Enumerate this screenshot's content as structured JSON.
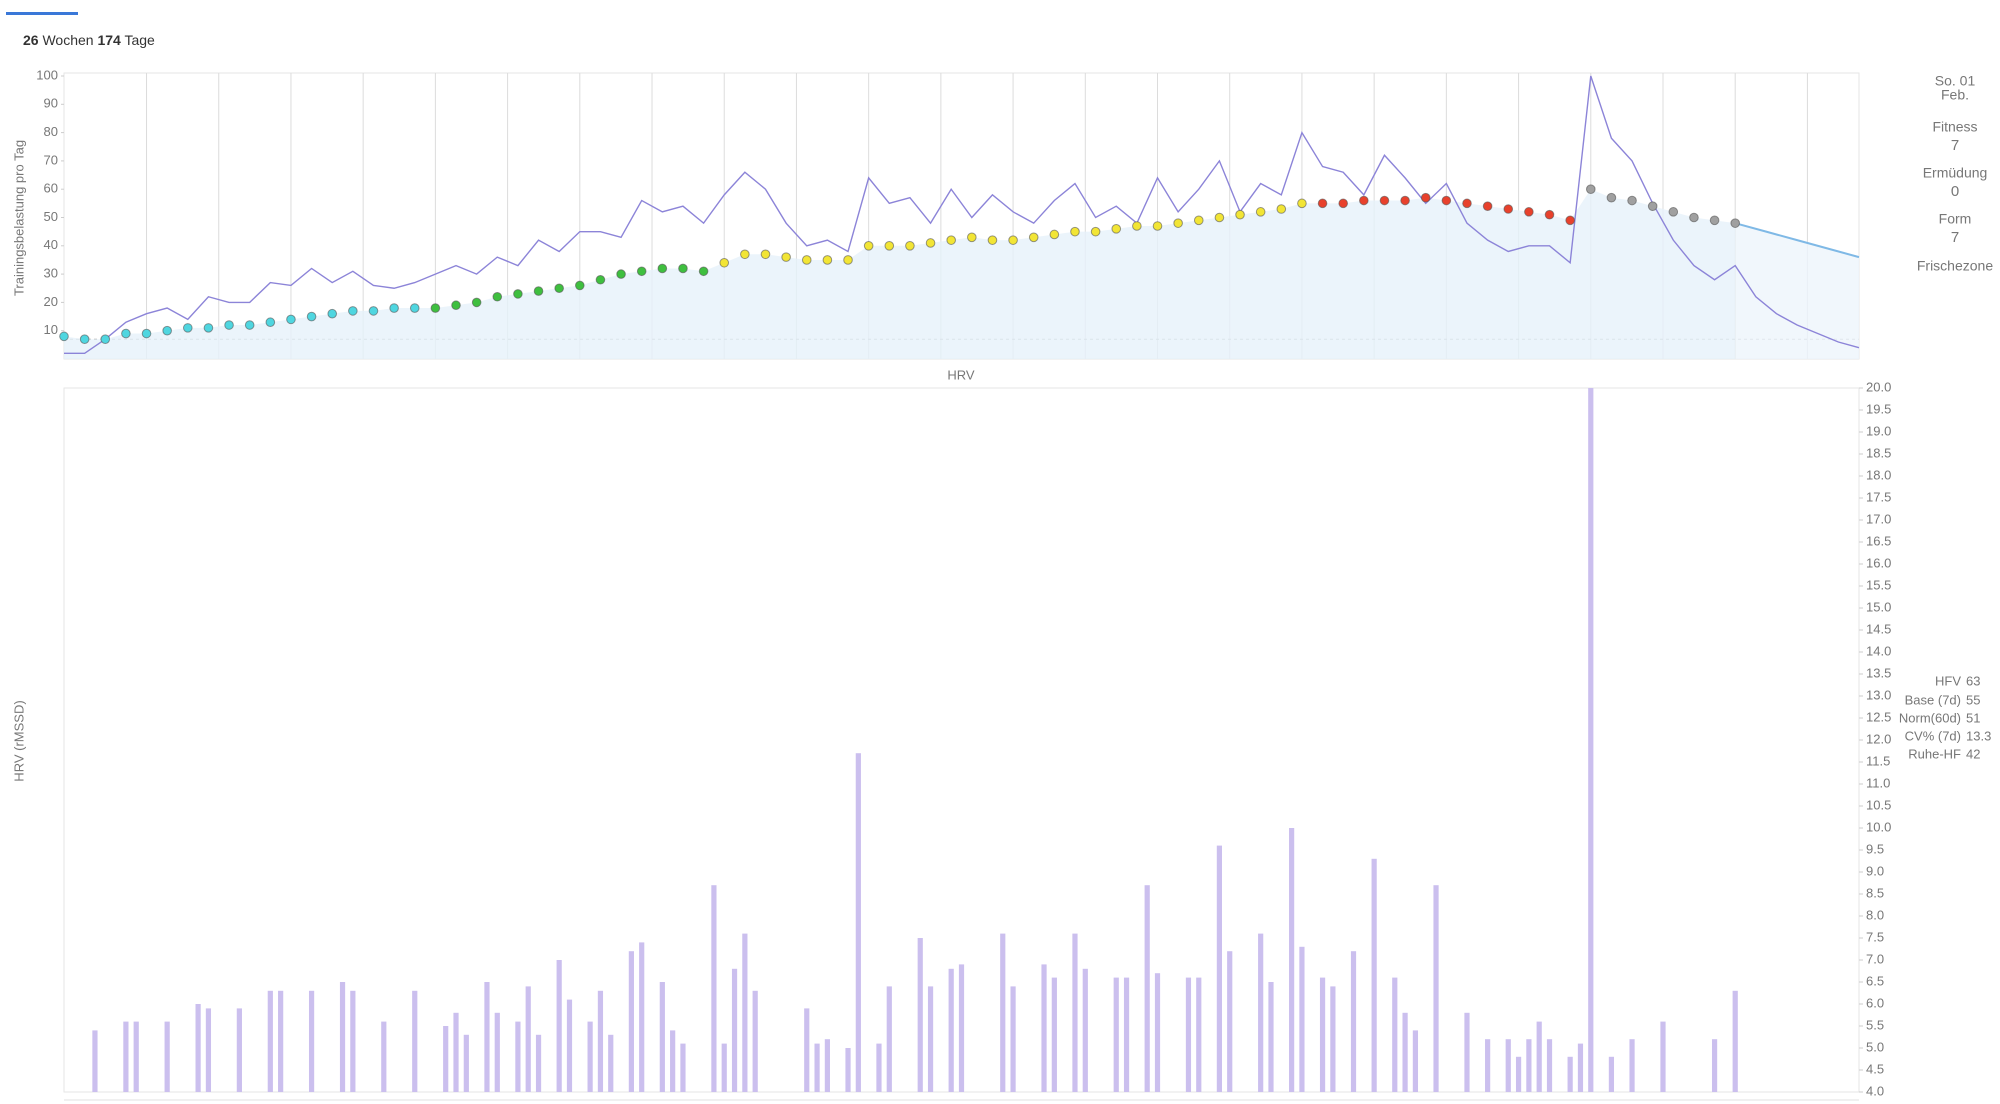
{
  "header": {
    "weeks": 26,
    "weeks_unit": "Wochen",
    "days": 174,
    "days_unit": "Tage"
  },
  "summary": {
    "date_day": "So. 01",
    "date_month": "Feb.",
    "items": [
      {
        "label": "Fitness",
        "value": 7,
        "color": "#3aa0d8"
      },
      {
        "label": "Ermüdung",
        "value": 0,
        "color": "#4b2fd6"
      },
      {
        "label": "Form",
        "value": 7,
        "color": "#3aa0d8"
      }
    ],
    "zone": "Frischezone"
  },
  "chart_data": [
    {
      "type": "line",
      "ylabel": "Trainingsbelastung pro Tag",
      "xlim": [
        0,
        174
      ],
      "ylim": [
        0,
        100
      ],
      "yticks": [
        10,
        20,
        30,
        40,
        50,
        60,
        70,
        80,
        90,
        100
      ],
      "x_gridlines": [
        8,
        15,
        22,
        29,
        36,
        43,
        50,
        57,
        64,
        71,
        78,
        85,
        92,
        99,
        106,
        113,
        120,
        127,
        134,
        141,
        148,
        155,
        162,
        169
      ],
      "reference_line": 7,
      "series": [
        {
          "kind": "line",
          "color": "#8c84d8",
          "x": [
            0,
            2,
            4,
            6,
            8,
            10,
            12,
            14,
            16,
            18,
            20,
            22,
            24,
            26,
            28,
            30,
            32,
            34,
            36,
            38,
            40,
            42,
            44,
            46,
            48,
            50,
            52,
            54,
            56,
            58,
            60,
            62,
            64,
            66,
            68,
            70,
            72,
            74,
            76,
            78,
            80,
            82,
            84,
            86,
            88,
            90,
            92,
            94,
            96,
            98,
            100,
            102,
            104,
            106,
            108,
            110,
            112,
            114,
            116,
            118,
            120,
            122,
            124,
            126,
            128,
            130,
            132,
            134,
            136,
            138,
            140,
            142,
            144,
            146,
            148,
            150,
            152,
            154,
            156,
            158,
            160,
            162,
            164,
            166,
            168,
            170,
            172,
            174
          ],
          "values": [
            2,
            2,
            7,
            13,
            16,
            18,
            14,
            22,
            20,
            20,
            27,
            26,
            32,
            27,
            31,
            26,
            25,
            27,
            30,
            33,
            30,
            36,
            33,
            42,
            38,
            45,
            45,
            43,
            56,
            52,
            54,
            48,
            58,
            66,
            60,
            48,
            40,
            42,
            38,
            64,
            55,
            57,
            48,
            60,
            50,
            58,
            52,
            48,
            56,
            62,
            50,
            54,
            48,
            64,
            52,
            60,
            70,
            52,
            62,
            58,
            80,
            68,
            66,
            58,
            72,
            64,
            55,
            62,
            48,
            42,
            38,
            40,
            40,
            34,
            100,
            78,
            70,
            55,
            42,
            33,
            28,
            33,
            22,
            16,
            12,
            9,
            6,
            4
          ]
        },
        {
          "kind": "dots",
          "area_color": "#e6f1fa",
          "x": [
            0,
            2,
            4,
            6,
            8,
            10,
            12,
            14,
            16,
            18,
            20,
            22,
            24,
            26,
            28,
            30,
            32,
            34,
            36,
            38,
            40,
            42,
            44,
            46,
            48,
            50,
            52,
            54,
            56,
            58,
            60,
            62,
            64,
            66,
            68,
            70,
            72,
            74,
            76,
            78,
            80,
            82,
            84,
            86,
            88,
            90,
            92,
            94,
            96,
            98,
            100,
            102,
            104,
            106,
            108,
            110,
            112,
            114,
            116,
            118,
            120,
            122,
            124,
            126,
            128,
            130,
            132,
            134,
            136,
            138,
            140,
            142,
            144,
            146,
            148,
            150,
            152,
            154,
            156,
            158,
            160,
            162
          ],
          "values": [
            8,
            7,
            7,
            9,
            9,
            10,
            11,
            11,
            12,
            12,
            13,
            14,
            15,
            16,
            17,
            17,
            18,
            18,
            18,
            19,
            20,
            22,
            23,
            24,
            25,
            26,
            28,
            30,
            31,
            32,
            32,
            31,
            34,
            37,
            37,
            36,
            35,
            35,
            35,
            40,
            40,
            40,
            41,
            42,
            43,
            42,
            42,
            43,
            44,
            45,
            45,
            46,
            47,
            47,
            48,
            49,
            50,
            51,
            52,
            53,
            55,
            55,
            55,
            56,
            56,
            56,
            57,
            56,
            55,
            54,
            53,
            52,
            51,
            49,
            60,
            57,
            56,
            54,
            52,
            50,
            49,
            48
          ],
          "colors": [
            "#4fd6e0",
            "#4fd6e0",
            "#4fd6e0",
            "#4fd6e0",
            "#4fd6e0",
            "#4fd6e0",
            "#4fd6e0",
            "#4fd6e0",
            "#4fd6e0",
            "#4fd6e0",
            "#4fd6e0",
            "#4fd6e0",
            "#4fd6e0",
            "#4fd6e0",
            "#4fd6e0",
            "#4fd6e0",
            "#4fd6e0",
            "#4fd6e0",
            "#3fbf3f",
            "#3fbf3f",
            "#3fbf3f",
            "#3fbf3f",
            "#3fbf3f",
            "#3fbf3f",
            "#3fbf3f",
            "#3fbf3f",
            "#3fbf3f",
            "#3fbf3f",
            "#3fbf3f",
            "#3fbf3f",
            "#3fbf3f",
            "#3fbf3f",
            "#f2e535",
            "#f2e535",
            "#f2e535",
            "#f2e535",
            "#f2e535",
            "#f2e535",
            "#f2e535",
            "#f2e535",
            "#f2e535",
            "#f2e535",
            "#f2e535",
            "#f2e535",
            "#f2e535",
            "#f2e535",
            "#f2e535",
            "#f2e535",
            "#f2e535",
            "#f2e535",
            "#f2e535",
            "#f2e535",
            "#f2e535",
            "#f2e535",
            "#f2e535",
            "#f2e535",
            "#f2e535",
            "#f2e535",
            "#f2e535",
            "#f2e535",
            "#f2e535",
            "#e8412c",
            "#e8412c",
            "#e8412c",
            "#e8412c",
            "#e8412c",
            "#e8412c",
            "#e8412c",
            "#e8412c",
            "#e8412c",
            "#e8412c",
            "#e8412c",
            "#e8412c",
            "#e8412c",
            "#a0a0a0",
            "#a0a0a0",
            "#a0a0a0",
            "#a0a0a0",
            "#a0a0a0",
            "#a0a0a0",
            "#a0a0a0",
            "#a0a0a0"
          ]
        },
        {
          "kind": "line",
          "color": "#7fb9e6",
          "area_color": "#eef5fb",
          "x": [
            162,
            165,
            168,
            171,
            174
          ],
          "values": [
            48,
            45,
            42,
            39,
            36
          ]
        }
      ]
    },
    {
      "type": "bar",
      "title": "HRV",
      "ylabel": "HRV (rMSSD)",
      "xlim": [
        0,
        174
      ],
      "ylim": [
        4,
        20
      ],
      "color": "#cbbfee",
      "yticks": [
        {
          "value": 4,
          "label": "4.0"
        },
        4.5,
        {
          "value": 5,
          "label": "5.0"
        },
        5.5,
        {
          "value": 6,
          "label": "6.0"
        },
        6.5,
        {
          "value": 7,
          "label": "7.0"
        },
        7.5,
        {
          "value": 8,
          "label": "8.0"
        },
        8.5,
        {
          "value": 9,
          "label": "9.0"
        },
        9.5,
        {
          "value": 10,
          "label": "10.0"
        },
        10.5,
        {
          "value": 11,
          "label": "11.0"
        },
        11.5,
        {
          "value": 12,
          "label": "12.0"
        },
        12.5,
        {
          "value": 13,
          "label": "13.0"
        },
        13.5,
        {
          "value": 14,
          "label": "14.0"
        },
        14.5,
        {
          "value": 15,
          "label": "15.0"
        },
        15.5,
        {
          "value": 16,
          "label": "16.0"
        },
        16.5,
        {
          "value": 17,
          "label": "17.0"
        },
        17.5,
        {
          "value": 18,
          "label": "18.0"
        },
        18.5,
        {
          "value": 19,
          "label": "19.0"
        },
        19.5,
        {
          "value": 20,
          "label": "20.0"
        }
      ],
      "x": [
        3,
        6,
        7,
        10,
        13,
        14,
        17,
        20,
        21,
        24,
        27,
        28,
        31,
        34,
        37,
        38,
        39,
        41,
        42,
        44,
        45,
        46,
        48,
        49,
        51,
        52,
        53,
        55,
        56,
        58,
        59,
        60,
        63,
        64,
        65,
        66,
        67,
        72,
        73,
        74,
        76,
        77,
        79,
        80,
        83,
        84,
        86,
        87,
        91,
        92,
        95,
        96,
        98,
        99,
        102,
        103,
        105,
        106,
        109,
        110,
        112,
        113,
        116,
        117,
        119,
        120,
        122,
        123,
        125,
        127,
        129,
        130,
        131,
        133,
        136,
        138,
        140,
        141,
        142,
        143,
        144,
        146,
        147,
        148,
        150,
        152,
        155,
        160,
        162
      ],
      "values": [
        5.4,
        5.6,
        5.6,
        5.6,
        6,
        5.9,
        5.9,
        6.3,
        6.3,
        6.3,
        6.5,
        6.3,
        5.6,
        6.3,
        5.5,
        5.8,
        5.3,
        6.5,
        5.8,
        5.6,
        6.4,
        5.3,
        7,
        6.1,
        5.6,
        6.3,
        5.3,
        7.2,
        7.4,
        6.5,
        5.4,
        5.1,
        8.7,
        5.1,
        6.8,
        7.6,
        6.3,
        5.9,
        5.1,
        5.2,
        5,
        11.7,
        5.1,
        6.4,
        7.5,
        6.4,
        6.8,
        6.9,
        7.6,
        6.4,
        6.9,
        6.6,
        7.6,
        6.8,
        6.6,
        6.6,
        8.7,
        6.7,
        6.6,
        6.6,
        9.6,
        7.2,
        7.6,
        6.5,
        10,
        7.3,
        6.6,
        6.4,
        7.2,
        9.3,
        6.6,
        5.8,
        5.4,
        8.7,
        5.8,
        5.2,
        5.2,
        4.8,
        5.2,
        5.6,
        5.2,
        4.8,
        5.1,
        20,
        4.8,
        5.2,
        5.6,
        5.2,
        6.3
      ],
      "legend": [
        {
          "name": "HFV",
          "value": 63,
          "color": "#3fa83f"
        },
        {
          "name": "Base (7d)",
          "value": 55,
          "color": "#e0203a"
        },
        {
          "name": "Norm(60d)",
          "value": 51,
          "color": "#f08a24"
        },
        {
          "name": "CV% (7d)",
          "value": 13.3,
          "color": "#2f7fe0"
        },
        {
          "name": "Ruhe-HF",
          "value": 42,
          "color": "#111111"
        }
      ]
    }
  ]
}
